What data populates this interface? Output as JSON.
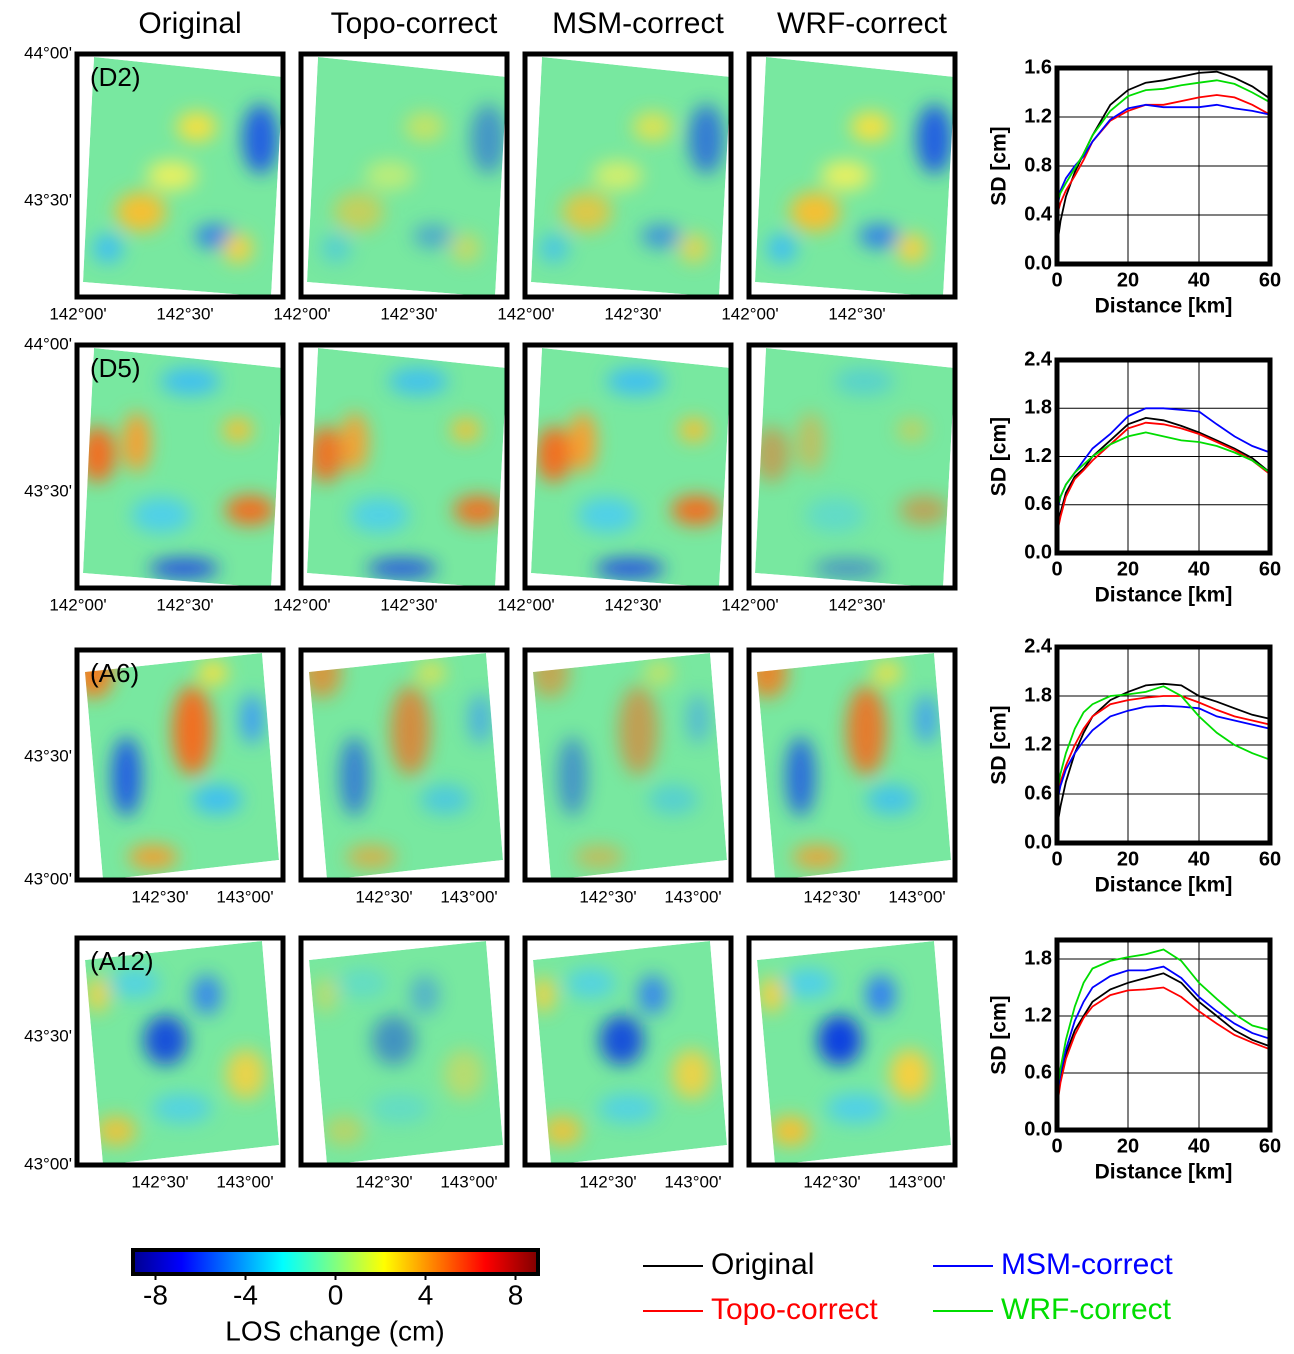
{
  "column_titles": [
    "Original",
    "Topo-correct",
    "MSM-correct",
    "WRF-correct"
  ],
  "maps": [
    {
      "label": "(D2)",
      "lat_ticks": [
        "44°00'",
        "43°30'"
      ],
      "lon_ticks": [
        "142°00'",
        "142°30'"
      ]
    },
    {
      "label": "(D5)",
      "lat_ticks": [
        "44°00'",
        "43°30'"
      ],
      "lon_ticks": [
        "142°00'",
        "142°30'"
      ]
    },
    {
      "label": "(A6)",
      "lat_ticks": [
        "43°30'",
        "43°00'"
      ],
      "lon_ticks": [
        "142°30'",
        "143°00'"
      ]
    },
    {
      "label": "(A12)",
      "lat_ticks": [
        "43°30'",
        "43°00'"
      ],
      "lon_ticks": [
        "142°30'",
        "143°00'"
      ]
    }
  ],
  "colorbar": {
    "label": "LOS change (cm)",
    "lim": [
      -9,
      9
    ],
    "ticks": [
      -8,
      -4,
      0,
      4,
      8
    ]
  },
  "legend": [
    {
      "name": "Original",
      "color": "#000000"
    },
    {
      "name": "Topo-correct",
      "color": "#ff0000"
    },
    {
      "name": "MSM-correct",
      "color": "#0000ff"
    },
    {
      "name": "WRF-correct",
      "color": "#00dd00"
    }
  ],
  "chart_data": [
    {
      "type": "line",
      "xlabel": "Distance [km]",
      "ylabel": "SD [cm]",
      "grid": true,
      "x": [
        0,
        1,
        2.5,
        5,
        7.5,
        10,
        15,
        20,
        25,
        30,
        35,
        40,
        45,
        50,
        55,
        60
      ],
      "xlim": [
        0,
        60
      ],
      "xticks": [
        0,
        20,
        40,
        60
      ],
      "ylim": [
        0,
        1.6
      ],
      "yticks": [
        {
          "value": 0,
          "label": "0.0"
        },
        0.4,
        0.8,
        1.2,
        1.6
      ],
      "series": [
        {
          "values": [
            0.15,
            0.35,
            0.55,
            0.75,
            0.9,
            1.05,
            1.3,
            1.42,
            1.48,
            1.5,
            1.53,
            1.56,
            1.57,
            1.52,
            1.45,
            1.35
          ]
        },
        {
          "values": [
            0.4,
            0.5,
            0.6,
            0.72,
            0.85,
            1.0,
            1.17,
            1.25,
            1.3,
            1.3,
            1.33,
            1.36,
            1.38,
            1.36,
            1.3,
            1.22
          ]
        },
        {
          "values": [
            0.45,
            0.6,
            0.7,
            0.8,
            0.88,
            1.0,
            1.18,
            1.27,
            1.3,
            1.28,
            1.28,
            1.28,
            1.3,
            1.27,
            1.25,
            1.22
          ]
        },
        {
          "values": [
            0.5,
            0.58,
            0.66,
            0.78,
            0.9,
            1.05,
            1.25,
            1.37,
            1.42,
            1.43,
            1.46,
            1.48,
            1.5,
            1.47,
            1.4,
            1.32
          ]
        }
      ]
    },
    {
      "type": "line",
      "xlabel": "Distance [km]",
      "ylabel": "SD [cm]",
      "grid": true,
      "x": [
        0,
        1,
        2.5,
        5,
        7.5,
        10,
        15,
        20,
        25,
        30,
        35,
        40,
        45,
        50,
        55,
        60
      ],
      "xlim": [
        0,
        60
      ],
      "xticks": [
        0,
        20,
        40,
        60
      ],
      "ylim": [
        0,
        2.4
      ],
      "yticks": [
        {
          "value": 0,
          "label": "0.0"
        },
        0.6,
        1.2,
        1.8,
        2.4
      ],
      "series": [
        {
          "values": [
            0.3,
            0.5,
            0.75,
            0.95,
            1.05,
            1.2,
            1.4,
            1.6,
            1.68,
            1.65,
            1.58,
            1.5,
            1.4,
            1.3,
            1.18,
            1.0
          ]
        },
        {
          "values": [
            0.25,
            0.45,
            0.7,
            0.92,
            1.03,
            1.15,
            1.35,
            1.55,
            1.62,
            1.6,
            1.55,
            1.48,
            1.38,
            1.28,
            1.15,
            0.98
          ]
        },
        {
          "values": [
            0.5,
            0.7,
            0.85,
            1.0,
            1.15,
            1.3,
            1.48,
            1.7,
            1.8,
            1.8,
            1.78,
            1.76,
            1.6,
            1.45,
            1.33,
            1.25
          ]
        },
        {
          "values": [
            0.55,
            0.7,
            0.85,
            1.0,
            1.1,
            1.2,
            1.35,
            1.45,
            1.5,
            1.45,
            1.4,
            1.38,
            1.33,
            1.25,
            1.15,
            1.0
          ]
        }
      ]
    },
    {
      "type": "line",
      "xlabel": "Distance [km]",
      "ylabel": "SD [cm]",
      "grid": true,
      "x": [
        0,
        1,
        2.5,
        5,
        7.5,
        10,
        15,
        20,
        25,
        30,
        35,
        40,
        45,
        50,
        55,
        60
      ],
      "xlim": [
        0,
        60
      ],
      "xticks": [
        0,
        20,
        40,
        60
      ],
      "ylim": [
        0,
        2.4
      ],
      "yticks": [
        {
          "value": 0,
          "label": "0.0"
        },
        0.6,
        1.2,
        1.8,
        2.4
      ],
      "series": [
        {
          "values": [
            0.2,
            0.45,
            0.75,
            1.1,
            1.35,
            1.55,
            1.75,
            1.85,
            1.93,
            1.95,
            1.93,
            1.8,
            1.73,
            1.65,
            1.57,
            1.52
          ]
        },
        {
          "values": [
            0.55,
            0.75,
            0.95,
            1.2,
            1.4,
            1.55,
            1.7,
            1.75,
            1.78,
            1.8,
            1.8,
            1.72,
            1.63,
            1.55,
            1.5,
            1.45
          ]
        },
        {
          "values": [
            0.5,
            0.7,
            0.9,
            1.1,
            1.25,
            1.38,
            1.55,
            1.62,
            1.67,
            1.68,
            1.67,
            1.65,
            1.55,
            1.5,
            1.45,
            1.4
          ]
        },
        {
          "values": [
            0.6,
            0.85,
            1.1,
            1.4,
            1.6,
            1.7,
            1.8,
            1.82,
            1.85,
            1.92,
            1.8,
            1.55,
            1.35,
            1.2,
            1.1,
            1.02
          ]
        }
      ]
    },
    {
      "type": "line",
      "xlabel": "Distance [km]",
      "ylabel": "SD [cm]",
      "grid": true,
      "x": [
        0,
        1,
        2.5,
        5,
        7.5,
        10,
        15,
        20,
        25,
        30,
        35,
        40,
        45,
        50,
        55,
        60
      ],
      "xlim": [
        0,
        60
      ],
      "xticks": [
        0,
        20,
        40,
        60
      ],
      "ylim": [
        0,
        2.0
      ],
      "yticks": [
        {
          "value": 0,
          "label": "0.0"
        },
        0.6,
        1.2,
        1.8
      ],
      "series": [
        {
          "values": [
            0.3,
            0.55,
            0.8,
            1.05,
            1.2,
            1.35,
            1.48,
            1.55,
            1.6,
            1.65,
            1.55,
            1.35,
            1.2,
            1.05,
            0.95,
            0.88
          ]
        },
        {
          "values": [
            0.25,
            0.5,
            0.75,
            1.0,
            1.18,
            1.3,
            1.42,
            1.47,
            1.48,
            1.5,
            1.4,
            1.25,
            1.12,
            1.0,
            0.92,
            0.85
          ]
        },
        {
          "values": [
            0.35,
            0.6,
            0.85,
            1.15,
            1.35,
            1.5,
            1.62,
            1.68,
            1.68,
            1.72,
            1.6,
            1.4,
            1.25,
            1.12,
            1.02,
            0.96
          ]
        },
        {
          "values": [
            0.4,
            0.65,
            0.95,
            1.3,
            1.55,
            1.7,
            1.78,
            1.82,
            1.85,
            1.9,
            1.78,
            1.55,
            1.38,
            1.22,
            1.1,
            1.05
          ]
        }
      ]
    }
  ]
}
